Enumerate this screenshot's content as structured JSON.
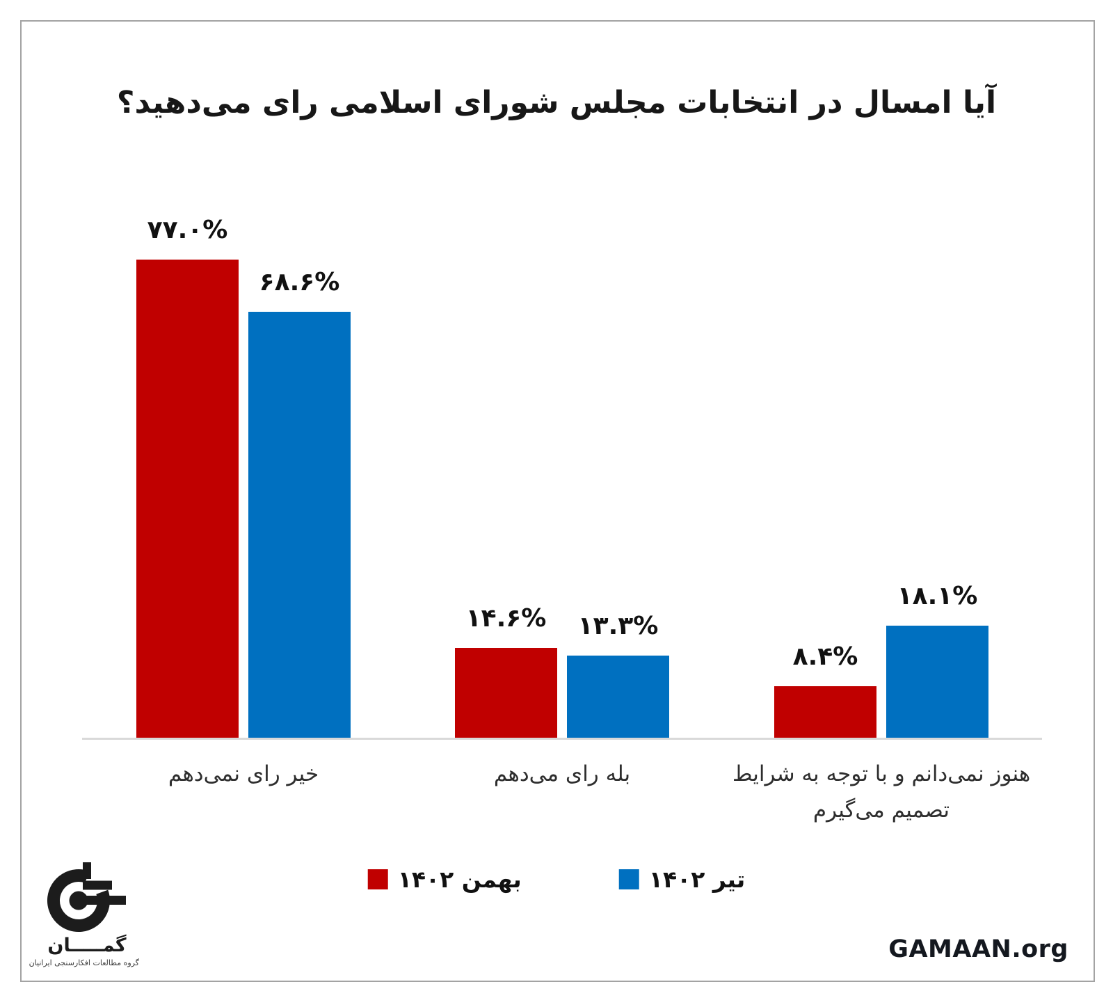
{
  "page": {
    "background": "#ffffff",
    "footer_site": "GAMAAN.org"
  },
  "logo": {
    "wordmark": "گمـــــان",
    "subtitle": "گروه مطالعات افکارسنجی ایرانیان"
  },
  "chart_data": {
    "type": "bar",
    "title": "آیا امسال در انتخابات مجلس شورای اسلامی رای می‌دهید؟",
    "categories": [
      "خیر رای نمی‌دهم",
      "بله رای می‌دهم",
      "هنوز نمی‌دانم و با توجه به شرایط\nتصمیم می‌گیرم"
    ],
    "series": [
      {
        "name": "بهمن ۱۴۰۲",
        "color": "#c00000",
        "values": [
          77.0,
          14.6,
          8.4
        ],
        "value_labels": [
          "۷۷.۰%",
          "۱۴.۶%",
          "۸.۴%"
        ]
      },
      {
        "name": "تیر ۱۴۰۲",
        "color": "#0070c0",
        "values": [
          68.6,
          13.3,
          18.1
        ],
        "value_labels": [
          "۶۸.۶%",
          "۱۳.۳%",
          "۱۸.۱%"
        ]
      }
    ],
    "xlabel": "",
    "ylabel": "",
    "ylim": [
      0,
      85
    ],
    "grid": false,
    "axis": "x-baseline-only",
    "legend_position": "bottom-center",
    "value_format": "percent-persian-digits"
  }
}
